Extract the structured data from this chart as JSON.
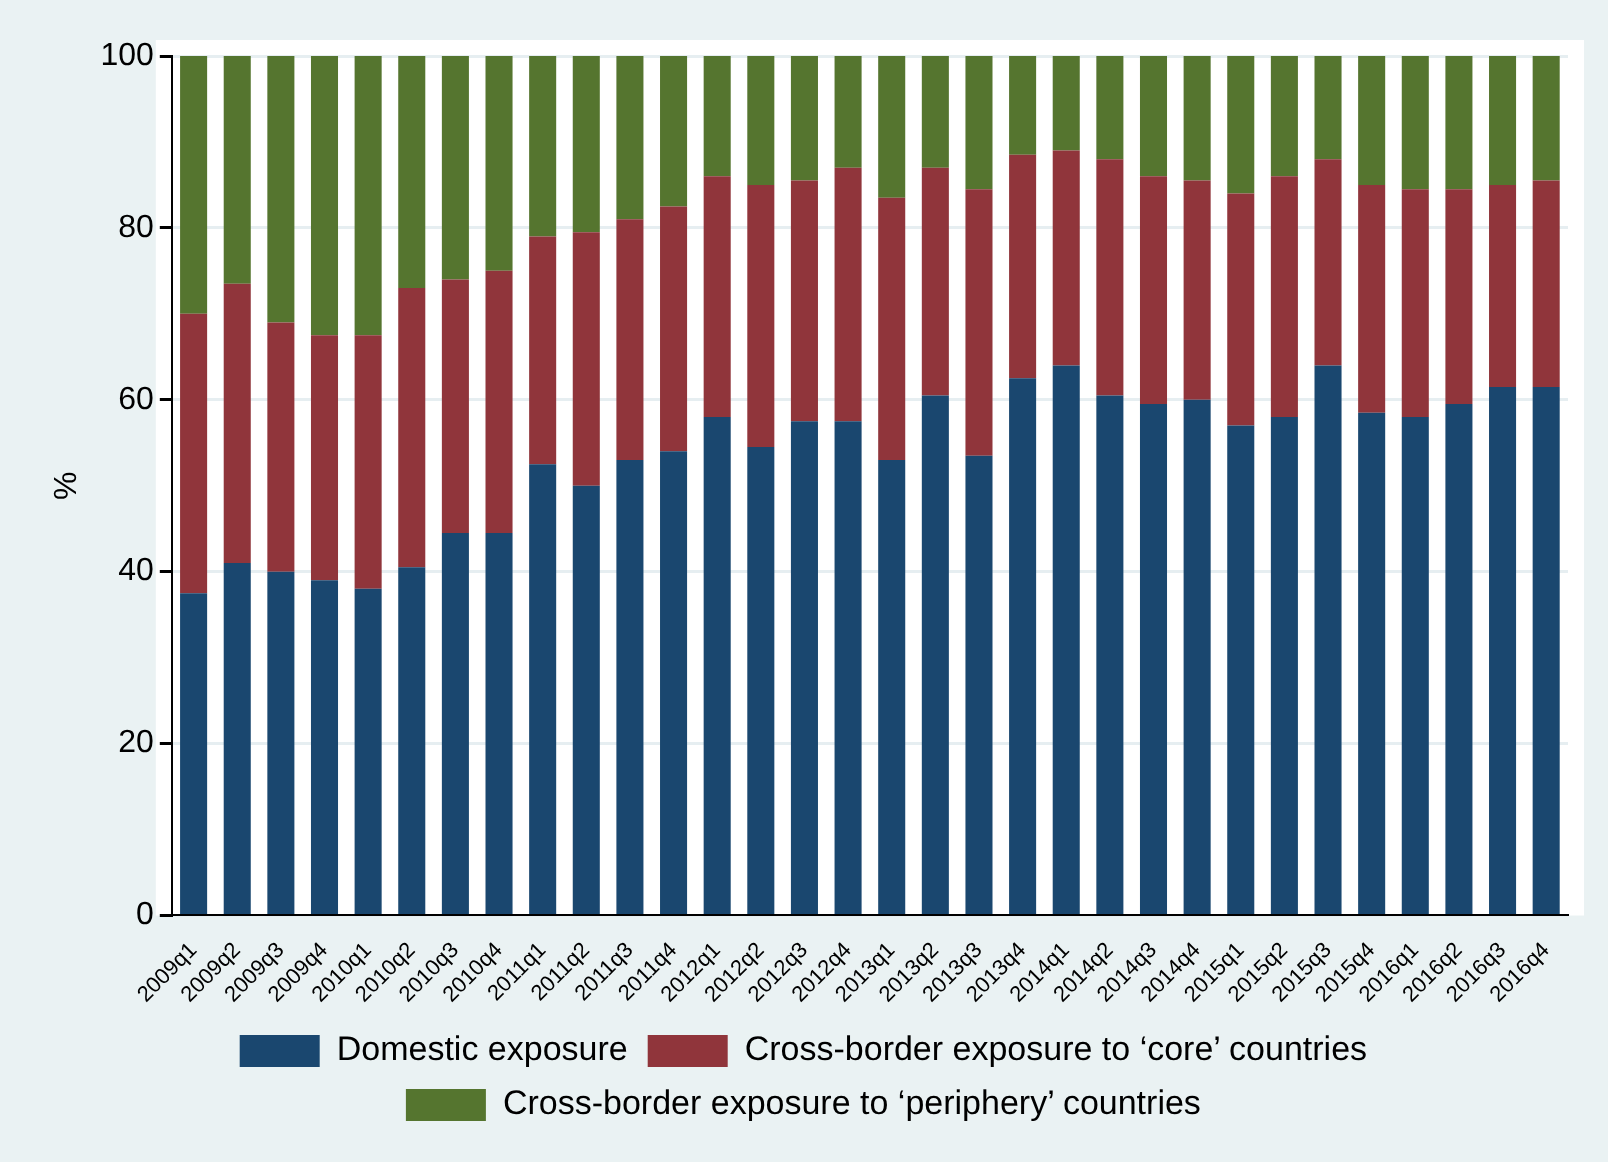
{
  "chart_data": {
    "type": "bar",
    "stacked": true,
    "ylabel": "%",
    "categories": [
      "2009q1",
      "2009q2",
      "2009q3",
      "2009q4",
      "2010q1",
      "2010q2",
      "2010q3",
      "2010q4",
      "2011q1",
      "2011q2",
      "2011q3",
      "2011q4",
      "2012q1",
      "2012q2",
      "2012q3",
      "2012q4",
      "2013q1",
      "2013q2",
      "2013q3",
      "2013q4",
      "2014q1",
      "2014q2",
      "2014q3",
      "2014q4",
      "2015q1",
      "2015q2",
      "2015q3",
      "2015q4",
      "2016q1",
      "2016q2",
      "2016q3",
      "2016q4"
    ],
    "series": [
      {
        "name": "Domestic exposure",
        "color": "#1a476f",
        "values": [
          37.5,
          41,
          40,
          39,
          38,
          40.5,
          44.5,
          44.5,
          52.5,
          50,
          53,
          54,
          58,
          54.5,
          57.5,
          57.5,
          53,
          60.5,
          53.5,
          62.5,
          64,
          60.5,
          59.5,
          60,
          57,
          58,
          64,
          58.5,
          58,
          59.5,
          61.5,
          61.5
        ]
      },
      {
        "name": "Cross-border exposure to ‘core’ countries",
        "color": "#90353b",
        "values": [
          32.5,
          32.5,
          29,
          28.5,
          29.5,
          32.5,
          29.5,
          30.5,
          26.5,
          29.5,
          28,
          28.5,
          28,
          30.5,
          28,
          29.5,
          30.5,
          26.5,
          31,
          26,
          25,
          27.5,
          26.5,
          25.5,
          27,
          28,
          24,
          26.5,
          26.5,
          25,
          23.5,
          24
        ]
      },
      {
        "name": "Cross-border exposure to ‘periphery’ countries",
        "color": "#55752f",
        "values": [
          30,
          26.5,
          31,
          32.5,
          32.5,
          27,
          26,
          25,
          21,
          20.5,
          19,
          17.5,
          14,
          15,
          14.5,
          13,
          16.5,
          13,
          15.5,
          11.5,
          11,
          12,
          14,
          14.5,
          16,
          14,
          12,
          15,
          15.5,
          15.5,
          15,
          14.5
        ]
      }
    ],
    "ylim": [
      0,
      100
    ],
    "yticks": [
      0,
      20,
      40,
      60,
      80,
      100
    ],
    "grid": "y",
    "legend": "bottom"
  }
}
